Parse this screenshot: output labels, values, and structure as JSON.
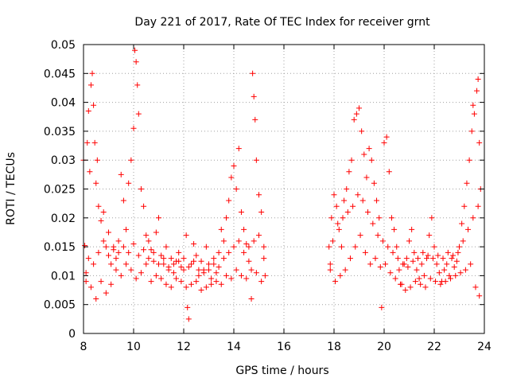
{
  "chart_data": {
    "type": "scatter",
    "title": "Day 221 of 2017, Rate Of TEC Index for receiver grnt",
    "xlabel": "GPS time / hours",
    "ylabel": "ROTI / TECUs",
    "xlim": [
      8,
      24
    ],
    "ylim": [
      0,
      0.05
    ],
    "xticks": [
      "8",
      "10",
      "12",
      "14",
      "16",
      "18",
      "20",
      "22",
      "24"
    ],
    "yticks": [
      "0",
      "0.005",
      "0.01",
      "0.015",
      "0.02",
      "0.025",
      "0.03",
      "0.035",
      "0.04",
      "0.045",
      "0.05"
    ],
    "grid": true,
    "legend": "none",
    "marker": "plus",
    "color": "#ff0000",
    "series": [
      {
        "points": [
          [
            8.0,
            0.03
          ],
          [
            8.05,
            0.0152
          ],
          [
            8.1,
            0.0105
          ],
          [
            8.15,
            0.033
          ],
          [
            8.2,
            0.0385
          ],
          [
            8.25,
            0.028
          ],
          [
            8.3,
            0.043
          ],
          [
            8.35,
            0.045
          ],
          [
            8.4,
            0.0395
          ],
          [
            8.45,
            0.033
          ],
          [
            8.5,
            0.026
          ],
          [
            8.55,
            0.03
          ],
          [
            8.6,
            0.022
          ],
          [
            8.7,
            0.0195
          ],
          [
            8.8,
            0.021
          ],
          [
            8.9,
            0.015
          ],
          [
            9.0,
            0.0175
          ],
          [
            9.1,
            0.012
          ],
          [
            9.2,
            0.0145
          ],
          [
            9.3,
            0.013
          ],
          [
            9.4,
            0.016
          ],
          [
            9.5,
            0.0275
          ],
          [
            9.6,
            0.023
          ],
          [
            9.7,
            0.018
          ],
          [
            9.8,
            0.026
          ],
          [
            9.9,
            0.03
          ],
          [
            10.0,
            0.0355
          ],
          [
            10.05,
            0.049
          ],
          [
            10.1,
            0.047
          ],
          [
            10.15,
            0.043
          ],
          [
            10.2,
            0.038
          ],
          [
            10.3,
            0.025
          ],
          [
            10.4,
            0.022
          ],
          [
            10.5,
            0.017
          ],
          [
            10.6,
            0.016
          ],
          [
            10.7,
            0.0145
          ],
          [
            10.8,
            0.014
          ],
          [
            10.9,
            0.0175
          ],
          [
            11.0,
            0.02
          ],
          [
            11.1,
            0.0135
          ],
          [
            11.2,
            0.012
          ],
          [
            11.3,
            0.015
          ],
          [
            11.4,
            0.011
          ],
          [
            11.5,
            0.013
          ],
          [
            11.6,
            0.0105
          ],
          [
            11.7,
            0.0125
          ],
          [
            11.8,
            0.014
          ],
          [
            11.9,
            0.0115
          ],
          [
            12.0,
            0.013
          ],
          [
            12.1,
            0.017
          ],
          [
            12.15,
            0.0045
          ],
          [
            12.2,
            0.0025
          ],
          [
            12.3,
            0.012
          ],
          [
            12.4,
            0.0155
          ],
          [
            12.5,
            0.0135
          ],
          [
            12.6,
            0.01
          ],
          [
            12.7,
            0.0125
          ],
          [
            12.8,
            0.011
          ],
          [
            12.9,
            0.015
          ],
          [
            13.0,
            0.012
          ],
          [
            13.1,
            0.0095
          ],
          [
            13.2,
            0.013
          ],
          [
            13.3,
            0.0105
          ],
          [
            13.4,
            0.014
          ],
          [
            13.5,
            0.018
          ],
          [
            13.6,
            0.016
          ],
          [
            13.7,
            0.02
          ],
          [
            13.8,
            0.023
          ],
          [
            13.9,
            0.027
          ],
          [
            14.0,
            0.029
          ],
          [
            14.1,
            0.025
          ],
          [
            14.2,
            0.032
          ],
          [
            14.3,
            0.021
          ],
          [
            14.4,
            0.018
          ],
          [
            14.5,
            0.0155
          ],
          [
            14.6,
            0.0125
          ],
          [
            14.7,
            0.011
          ],
          [
            14.75,
            0.045
          ],
          [
            14.8,
            0.041
          ],
          [
            14.85,
            0.037
          ],
          [
            14.9,
            0.03
          ],
          [
            15.0,
            0.024
          ],
          [
            15.1,
            0.021
          ],
          [
            15.2,
            0.015
          ],
          [
            15.25,
            0.01
          ],
          [
            8.1,
            0.009
          ],
          [
            8.3,
            0.008
          ],
          [
            8.5,
            0.006
          ],
          [
            8.7,
            0.009
          ],
          [
            8.9,
            0.007
          ],
          [
            9.1,
            0.0085
          ],
          [
            9.3,
            0.011
          ],
          [
            9.5,
            0.01
          ],
          [
            9.7,
            0.012
          ],
          [
            9.9,
            0.011
          ],
          [
            10.1,
            0.0095
          ],
          [
            10.3,
            0.0105
          ],
          [
            10.5,
            0.012
          ],
          [
            10.7,
            0.009
          ],
          [
            10.9,
            0.01
          ],
          [
            11.1,
            0.0095
          ],
          [
            11.3,
            0.0085
          ],
          [
            11.5,
            0.008
          ],
          [
            11.7,
            0.0095
          ],
          [
            11.9,
            0.009
          ],
          [
            12.1,
            0.008
          ],
          [
            12.3,
            0.0085
          ],
          [
            12.5,
            0.009
          ],
          [
            12.7,
            0.0075
          ],
          [
            12.9,
            0.008
          ],
          [
            13.1,
            0.0085
          ],
          [
            13.3,
            0.009
          ],
          [
            13.5,
            0.0085
          ],
          [
            13.7,
            0.01
          ],
          [
            13.9,
            0.0095
          ],
          [
            14.1,
            0.011
          ],
          [
            14.3,
            0.01
          ],
          [
            14.5,
            0.0095
          ],
          [
            14.7,
            0.006
          ],
          [
            14.9,
            0.0105
          ],
          [
            15.1,
            0.009
          ],
          [
            8.2,
            0.013
          ],
          [
            8.4,
            0.012
          ],
          [
            8.6,
            0.014
          ],
          [
            8.8,
            0.016
          ],
          [
            9.0,
            0.0135
          ],
          [
            9.2,
            0.015
          ],
          [
            9.4,
            0.014
          ],
          [
            9.6,
            0.015
          ],
          [
            9.8,
            0.014
          ],
          [
            10.0,
            0.0155
          ],
          [
            10.2,
            0.0135
          ],
          [
            10.4,
            0.0145
          ],
          [
            10.6,
            0.013
          ],
          [
            10.8,
            0.0125
          ],
          [
            11.0,
            0.012
          ],
          [
            11.2,
            0.013
          ],
          [
            11.4,
            0.0115
          ],
          [
            11.6,
            0.012
          ],
          [
            11.8,
            0.0125
          ],
          [
            12.0,
            0.011
          ],
          [
            12.2,
            0.0115
          ],
          [
            12.4,
            0.0125
          ],
          [
            12.6,
            0.011
          ],
          [
            12.8,
            0.0105
          ],
          [
            13.0,
            0.011
          ],
          [
            13.2,
            0.012
          ],
          [
            13.4,
            0.0115
          ],
          [
            13.6,
            0.013
          ],
          [
            13.8,
            0.014
          ],
          [
            14.0,
            0.015
          ],
          [
            14.2,
            0.016
          ],
          [
            14.4,
            0.014
          ],
          [
            14.6,
            0.015
          ],
          [
            14.8,
            0.016
          ],
          [
            15.0,
            0.017
          ],
          [
            15.2,
            0.013
          ],
          [
            17.8,
            0.015
          ],
          [
            17.85,
            0.012
          ],
          [
            17.9,
            0.02
          ],
          [
            18.0,
            0.024
          ],
          [
            18.1,
            0.022
          ],
          [
            18.2,
            0.018
          ],
          [
            18.3,
            0.015
          ],
          [
            18.4,
            0.023
          ],
          [
            18.5,
            0.025
          ],
          [
            18.6,
            0.028
          ],
          [
            18.7,
            0.03
          ],
          [
            18.8,
            0.037
          ],
          [
            18.9,
            0.038
          ],
          [
            19.0,
            0.039
          ],
          [
            19.1,
            0.035
          ],
          [
            19.2,
            0.031
          ],
          [
            19.3,
            0.027
          ],
          [
            19.4,
            0.032
          ],
          [
            19.5,
            0.03
          ],
          [
            19.6,
            0.026
          ],
          [
            19.7,
            0.023
          ],
          [
            19.8,
            0.02
          ],
          [
            19.9,
            0.0045
          ],
          [
            20.0,
            0.033
          ],
          [
            20.1,
            0.034
          ],
          [
            20.2,
            0.028
          ],
          [
            20.3,
            0.02
          ],
          [
            20.4,
            0.018
          ],
          [
            20.5,
            0.015
          ],
          [
            20.6,
            0.011
          ],
          [
            20.7,
            0.0085
          ],
          [
            20.8,
            0.012
          ],
          [
            20.9,
            0.013
          ],
          [
            21.0,
            0.016
          ],
          [
            21.1,
            0.018
          ],
          [
            21.2,
            0.014
          ],
          [
            21.3,
            0.011
          ],
          [
            21.4,
            0.0095
          ],
          [
            21.5,
            0.012
          ],
          [
            21.6,
            0.01
          ],
          [
            21.7,
            0.013
          ],
          [
            21.8,
            0.017
          ],
          [
            21.9,
            0.02
          ],
          [
            22.0,
            0.015
          ],
          [
            22.1,
            0.012
          ],
          [
            22.2,
            0.0105
          ],
          [
            22.3,
            0.009
          ],
          [
            22.4,
            0.011
          ],
          [
            22.5,
            0.012
          ],
          [
            22.6,
            0.01
          ],
          [
            22.7,
            0.013
          ],
          [
            22.8,
            0.0115
          ],
          [
            22.9,
            0.0125
          ],
          [
            23.0,
            0.015
          ],
          [
            23.1,
            0.019
          ],
          [
            23.2,
            0.022
          ],
          [
            23.3,
            0.026
          ],
          [
            23.4,
            0.03
          ],
          [
            23.5,
            0.035
          ],
          [
            23.55,
            0.0395
          ],
          [
            23.6,
            0.038
          ],
          [
            23.7,
            0.042
          ],
          [
            23.75,
            0.044
          ],
          [
            23.8,
            0.033
          ],
          [
            23.85,
            0.025
          ],
          [
            17.85,
            0.011
          ],
          [
            18.05,
            0.009
          ],
          [
            18.25,
            0.01
          ],
          [
            18.45,
            0.011
          ],
          [
            18.65,
            0.013
          ],
          [
            18.85,
            0.015
          ],
          [
            19.05,
            0.017
          ],
          [
            19.25,
            0.014
          ],
          [
            19.45,
            0.012
          ],
          [
            19.65,
            0.013
          ],
          [
            19.85,
            0.0115
          ],
          [
            20.05,
            0.012
          ],
          [
            20.25,
            0.0105
          ],
          [
            20.45,
            0.0095
          ],
          [
            20.65,
            0.0085
          ],
          [
            20.85,
            0.0075
          ],
          [
            21.05,
            0.008
          ],
          [
            21.25,
            0.009
          ],
          [
            21.45,
            0.0085
          ],
          [
            21.65,
            0.008
          ],
          [
            21.85,
            0.0095
          ],
          [
            22.05,
            0.009
          ],
          [
            22.25,
            0.0085
          ],
          [
            22.45,
            0.009
          ],
          [
            22.65,
            0.0095
          ],
          [
            22.85,
            0.01
          ],
          [
            23.05,
            0.0105
          ],
          [
            23.25,
            0.011
          ],
          [
            23.45,
            0.012
          ],
          [
            23.65,
            0.008
          ],
          [
            23.8,
            0.0065
          ],
          [
            17.95,
            0.016
          ],
          [
            18.15,
            0.019
          ],
          [
            18.35,
            0.02
          ],
          [
            18.55,
            0.021
          ],
          [
            18.75,
            0.022
          ],
          [
            18.95,
            0.024
          ],
          [
            19.15,
            0.023
          ],
          [
            19.35,
            0.021
          ],
          [
            19.55,
            0.019
          ],
          [
            19.75,
            0.017
          ],
          [
            19.95,
            0.016
          ],
          [
            20.15,
            0.015
          ],
          [
            20.35,
            0.014
          ],
          [
            20.55,
            0.013
          ],
          [
            20.75,
            0.012
          ],
          [
            20.95,
            0.0115
          ],
          [
            21.15,
            0.0125
          ],
          [
            21.35,
            0.013
          ],
          [
            21.55,
            0.014
          ],
          [
            21.75,
            0.0135
          ],
          [
            21.95,
            0.013
          ],
          [
            22.15,
            0.0135
          ],
          [
            22.35,
            0.013
          ],
          [
            22.55,
            0.014
          ],
          [
            22.75,
            0.0135
          ],
          [
            22.95,
            0.014
          ],
          [
            23.15,
            0.016
          ],
          [
            23.35,
            0.018
          ],
          [
            23.55,
            0.02
          ],
          [
            23.75,
            0.022
          ]
        ]
      }
    ]
  }
}
